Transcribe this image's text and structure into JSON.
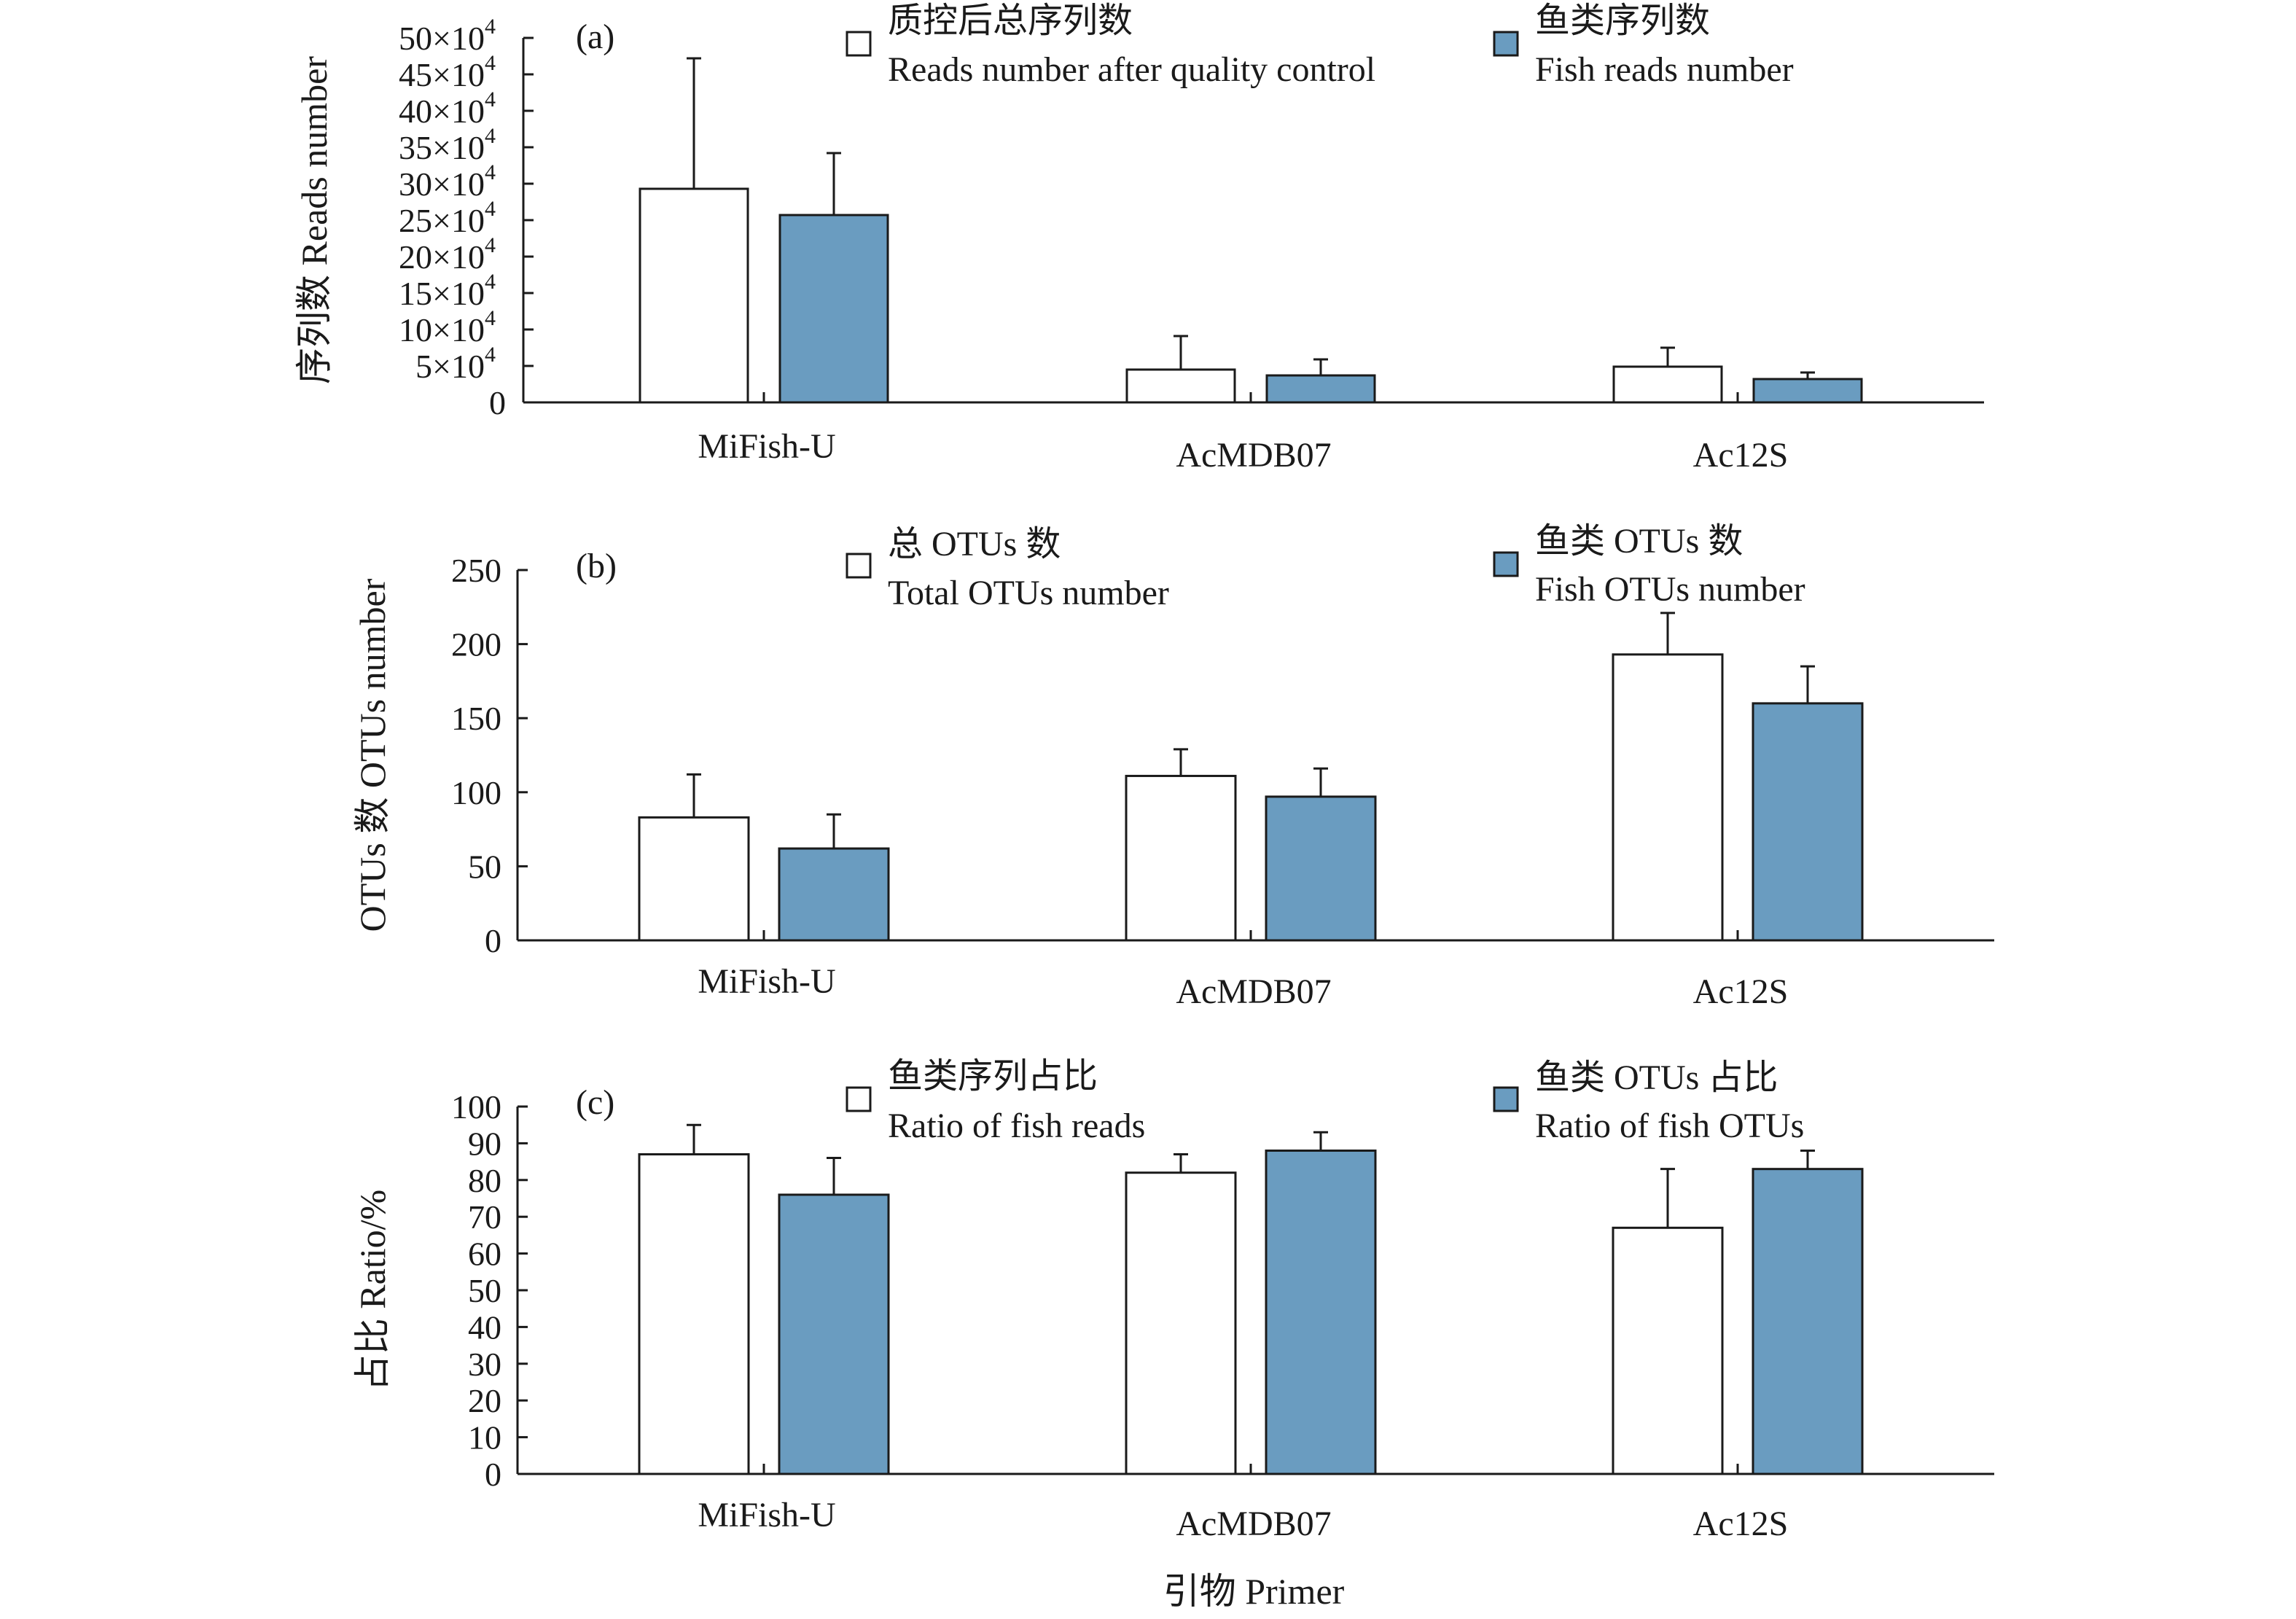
{
  "colors": {
    "total": "#ffffff",
    "fish": "#6a9cc0",
    "ink": "#1a1a1a"
  },
  "xlabel": "引物 Primer",
  "chart_data": [
    {
      "type": "bar",
      "panel": "(a)",
      "ylabel": "序列数 Reads number",
      "categories": [
        "MiFish-U",
        "AcMDB07",
        "Ac12S"
      ],
      "ylim": [
        0,
        500000
      ],
      "yticks": [
        {
          "value": 0,
          "mantissa": "0",
          "power": ""
        },
        {
          "value": 50000,
          "mantissa": "5×10",
          "power": "4"
        },
        {
          "value": 100000,
          "mantissa": "10×10",
          "power": "4"
        },
        {
          "value": 150000,
          "mantissa": "15×10",
          "power": "4"
        },
        {
          "value": 200000,
          "mantissa": "20×10",
          "power": "4"
        },
        {
          "value": 250000,
          "mantissa": "25×10",
          "power": "4"
        },
        {
          "value": 300000,
          "mantissa": "30×10",
          "power": "4"
        },
        {
          "value": 350000,
          "mantissa": "35×10",
          "power": "4"
        },
        {
          "value": 400000,
          "mantissa": "40×10",
          "power": "4"
        },
        {
          "value": 450000,
          "mantissa": "45×10",
          "power": "4"
        },
        {
          "value": 500000,
          "mantissa": "50×10",
          "power": "4"
        }
      ],
      "series": [
        {
          "name_cn": "质控后总序列数",
          "name_en": "Reads number after quality control",
          "color_key": "total",
          "values": [
            293000,
            45000,
            49000
          ],
          "errors": [
            179000,
            46000,
            26000
          ]
        },
        {
          "name_cn": "鱼类序列数",
          "name_en": "Fish reads number",
          "color_key": "fish",
          "values": [
            257000,
            37000,
            32000
          ],
          "errors": [
            85000,
            22000,
            9000
          ]
        }
      ]
    },
    {
      "type": "bar",
      "panel": "(b)",
      "ylabel": "OTUs 数 OTUs number",
      "categories": [
        "MiFish-U",
        "AcMDB07",
        "Ac12S"
      ],
      "ylim": [
        0,
        250
      ],
      "yticks": [
        {
          "value": 0,
          "mantissa": "0",
          "power": ""
        },
        {
          "value": 50,
          "mantissa": "50",
          "power": ""
        },
        {
          "value": 100,
          "mantissa": "100",
          "power": ""
        },
        {
          "value": 150,
          "mantissa": "150",
          "power": ""
        },
        {
          "value": 200,
          "mantissa": "200",
          "power": ""
        },
        {
          "value": 250,
          "mantissa": "250",
          "power": ""
        }
      ],
      "series": [
        {
          "name_cn": "总 OTUs 数",
          "name_en": "Total OTUs number",
          "color_key": "total",
          "values": [
            83,
            111,
            193
          ],
          "errors": [
            29,
            18,
            28
          ]
        },
        {
          "name_cn": "鱼类 OTUs 数",
          "name_en": "Fish OTUs number",
          "color_key": "fish",
          "values": [
            62,
            97,
            160
          ],
          "errors": [
            23,
            19,
            25
          ]
        }
      ]
    },
    {
      "type": "bar",
      "panel": "(c)",
      "ylabel": "占比 Ratio/%",
      "categories": [
        "MiFish-U",
        "AcMDB07",
        "Ac12S"
      ],
      "ylim": [
        0,
        100
      ],
      "yticks": [
        {
          "value": 0,
          "mantissa": "0",
          "power": ""
        },
        {
          "value": 10,
          "mantissa": "10",
          "power": ""
        },
        {
          "value": 20,
          "mantissa": "20",
          "power": ""
        },
        {
          "value": 30,
          "mantissa": "30",
          "power": ""
        },
        {
          "value": 40,
          "mantissa": "40",
          "power": ""
        },
        {
          "value": 50,
          "mantissa": "50",
          "power": ""
        },
        {
          "value": 60,
          "mantissa": "60",
          "power": ""
        },
        {
          "value": 70,
          "mantissa": "70",
          "power": ""
        },
        {
          "value": 80,
          "mantissa": "80",
          "power": ""
        },
        {
          "value": 90,
          "mantissa": "90",
          "power": ""
        },
        {
          "value": 100,
          "mantissa": "100",
          "power": ""
        }
      ],
      "series": [
        {
          "name_cn": "鱼类序列占比",
          "name_en": "Ratio of fish reads",
          "color_key": "total",
          "values": [
            87,
            82,
            67
          ],
          "errors": [
            8,
            5,
            16
          ]
        },
        {
          "name_cn": "鱼类 OTUs 占比",
          "name_en": "Ratio of fish OTUs",
          "color_key": "fish",
          "values": [
            76,
            88,
            83
          ],
          "errors": [
            10,
            5,
            5
          ]
        }
      ]
    }
  ]
}
